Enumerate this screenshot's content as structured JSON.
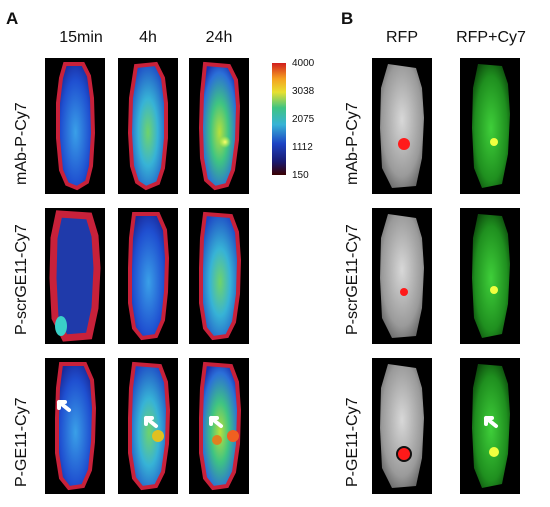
{
  "panels": {
    "a": {
      "letter": "A",
      "timepoints": [
        "15min",
        "4h",
        "24h"
      ]
    },
    "b": {
      "letter": "B",
      "channels": [
        "RFP",
        "RFP+Cy7"
      ]
    }
  },
  "rows": [
    "mAb-P-Cy7",
    "P-scrGE11-Cy7",
    "P-GE11-Cy7"
  ],
  "colorbar": {
    "ticks": [
      "4000",
      "3038",
      "2075",
      "1112",
      "150"
    ]
  }
}
